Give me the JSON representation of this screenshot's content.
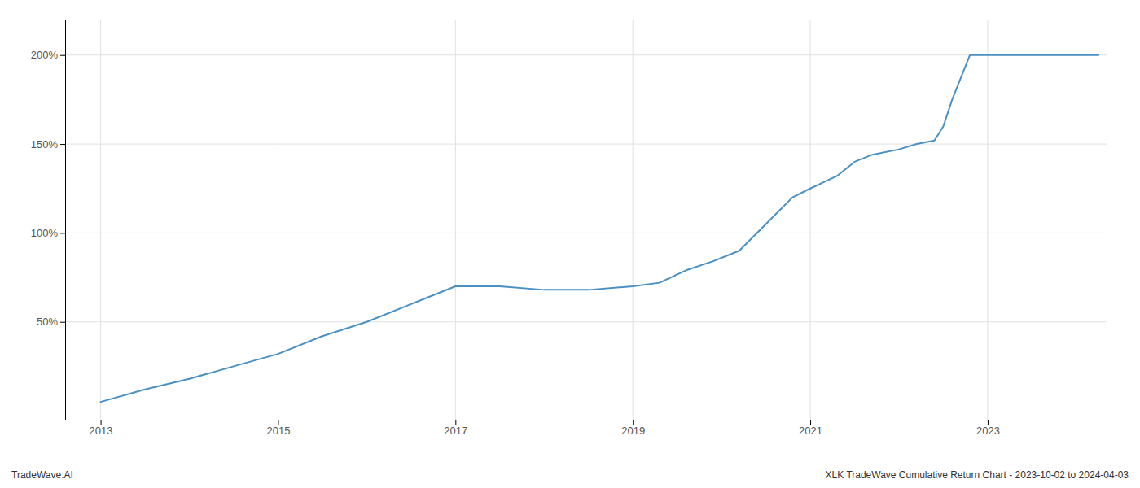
{
  "chart_data": {
    "type": "line",
    "x": [
      2013.0,
      2013.5,
      2014.0,
      2014.5,
      2015.0,
      2015.5,
      2016.0,
      2016.5,
      2017.0,
      2017.3,
      2017.5,
      2018.0,
      2018.5,
      2019.0,
      2019.3,
      2019.6,
      2019.9,
      2020.2,
      2020.5,
      2020.8,
      2021.0,
      2021.3,
      2021.5,
      2021.7,
      2022.0,
      2022.2,
      2022.4,
      2022.5,
      2022.6,
      2022.8,
      2023.0,
      2023.5,
      2024.0,
      2024.25
    ],
    "values": [
      5,
      12,
      18,
      25,
      32,
      42,
      50,
      60,
      70,
      70,
      70,
      68,
      68,
      70,
      72,
      79,
      84,
      90,
      105,
      120,
      125,
      132,
      140,
      144,
      147,
      150,
      152,
      160,
      175,
      200,
      200,
      200,
      200,
      200
    ],
    "color": "#4a90c4",
    "xlim": [
      2012.6,
      2024.35
    ],
    "xticks": [
      2013,
      2015,
      2017,
      2019,
      2021,
      2023
    ],
    "ylim": [
      -5,
      220
    ],
    "yticks": [
      {
        "value": 50,
        "label": "50%"
      },
      {
        "value": 100,
        "label": "100%"
      },
      {
        "value": 150,
        "label": "150%"
      },
      {
        "value": 200,
        "label": "200%"
      }
    ],
    "grid": true,
    "annotations": [
      "TradeWave.AI",
      "XLK TradeWave Cumulative Return Chart - 2023-10-02 to 2024-04-03"
    ]
  }
}
